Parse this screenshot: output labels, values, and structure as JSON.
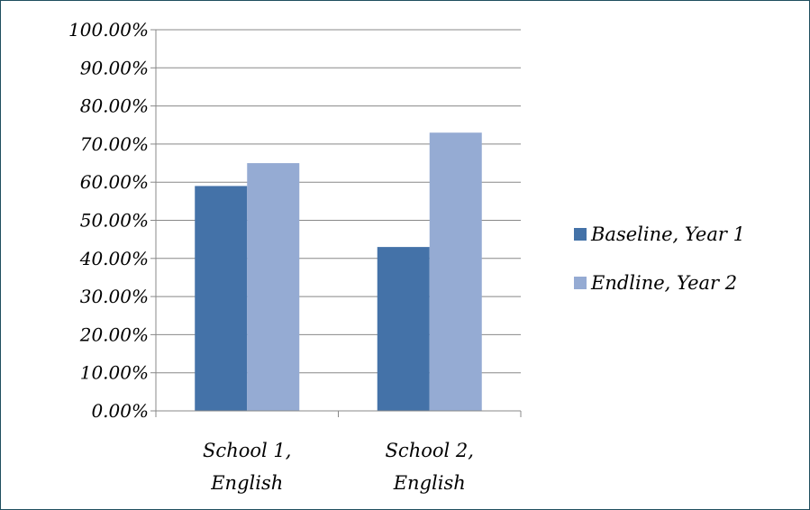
{
  "chart_data": {
    "type": "bar",
    "title": "",
    "xlabel": "",
    "ylabel": "",
    "categories": [
      [
        "School 1,",
        "English"
      ],
      [
        "School 2,",
        "English"
      ]
    ],
    "series": [
      {
        "name": "Baseline, Year 1",
        "color": "#4472a8",
        "values": [
          59.0,
          43.0
        ]
      },
      {
        "name": "Endline, Year 2",
        "color": "#95abd3",
        "values": [
          65.0,
          73.0
        ]
      }
    ],
    "ylim": [
      0,
      100
    ],
    "yticks": [
      "0.00%",
      "10.00%",
      "20.00%",
      "30.00%",
      "40.00%",
      "50.00%",
      "60.00%",
      "70.00%",
      "80.00%",
      "90.00%",
      "100.00%"
    ],
    "grid": true,
    "legend_position": "right"
  }
}
